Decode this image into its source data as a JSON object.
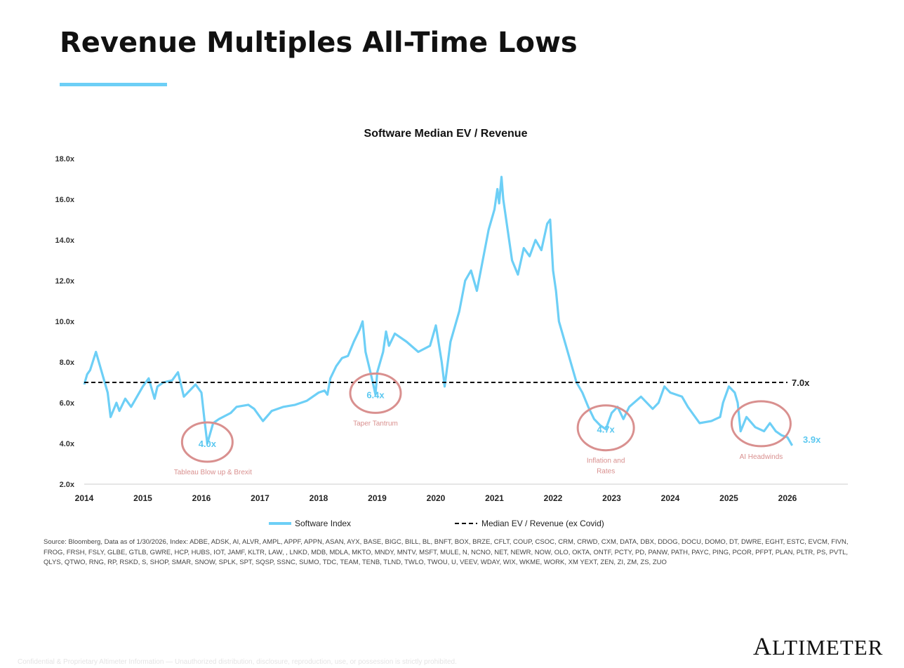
{
  "page": {
    "title": "Revenue Multiples All-Time Lows",
    "source": "Source: Bloomberg, Data as of 1/30/2026, Index: ADBE, ADSK, AI, ALVR, AMPL, APPF, APPN, ASAN, AYX, BASE, BIGC, BILL, BL, BNFT, BOX,  BRZE, CFLT, COUP, CSOC, CRM, CRWD, CXM, DATA, DBX, DDOG, DOCU, DOMO, DT, DWRE, EGHT, ESTC, EVCM, FIVN, FROG, FRSH, FSLY, GLBE, GTLB, GWRE, HCP, HUBS, IOT, JAMF, KLTR, LAW, , LNKD, MDB, MDLA, MKTO, MNDY, MNTV, MSFT, MULE, N, NCNO, NET, NEWR, NOW, OLO, OKTA, ONTF, PCTY, PD, PANW, PATH, PAYC, PING, PCOR, PFPT, PLAN, PLTR, PS, PVTL, QLYS, QTWO, RNG, RP, RSKD, S, SHOP, SMAR, SNOW, SPLK, SPT, SQSP, SSNC, SUMO, TDC, TEAM, TENB, TLND, TWLO, TWOU, U, VEEV, WDAY, WIX, WKME, WORK, XM YEXT, ZEN, ZI, ZM, ZS, ZUO",
    "confidential": "Confidential & Proprietary Altimeter Information — Unauthorized distribution, disclosure, reproduction, use, or possession is strictly prohibited.",
    "logo": "ALTIMETER",
    "accent": "#6dcff6"
  },
  "chart_data": {
    "type": "line",
    "title": "Software Median EV / Revenue",
    "xlabel": "",
    "ylabel": "",
    "xlim": [
      2014,
      2026.8
    ],
    "ylim": [
      2,
      18
    ],
    "x_ticks": [
      "2014",
      "2015",
      "2016",
      "2017",
      "2018",
      "2019",
      "2020",
      "2021",
      "2022",
      "2023",
      "2024",
      "2025",
      "2026"
    ],
    "y_ticks": [
      "2.0x",
      "4.0x",
      "6.0x",
      "8.0x",
      "10.0x",
      "12.0x",
      "14.0x",
      "16.0x",
      "18.0x"
    ],
    "grid": false,
    "legend": "bottom",
    "series": [
      {
        "name": "Software Index",
        "color": "#6dcff6",
        "x": [
          2014.0,
          2014.05,
          2014.1,
          2014.2,
          2014.3,
          2014.4,
          2014.45,
          2014.55,
          2014.6,
          2014.7,
          2014.8,
          2014.9,
          2015.0,
          2015.1,
          2015.2,
          2015.25,
          2015.35,
          2015.5,
          2015.6,
          2015.7,
          2015.8,
          2015.9,
          2016.0,
          2016.05,
          2016.1,
          2016.2,
          2016.3,
          2016.5,
          2016.6,
          2016.8,
          2016.9,
          2017.0,
          2017.05,
          2017.2,
          2017.4,
          2017.6,
          2017.8,
          2018.0,
          2018.1,
          2018.15,
          2018.2,
          2018.3,
          2018.4,
          2018.5,
          2018.6,
          2018.7,
          2018.75,
          2018.8,
          2018.9,
          2018.97,
          2019.0,
          2019.1,
          2019.15,
          2019.2,
          2019.3,
          2019.5,
          2019.7,
          2019.9,
          2020.0,
          2020.1,
          2020.15,
          2020.25,
          2020.4,
          2020.5,
          2020.6,
          2020.7,
          2020.8,
          2020.9,
          2021.0,
          2021.05,
          2021.08,
          2021.12,
          2021.15,
          2021.25,
          2021.3,
          2021.4,
          2021.5,
          2021.6,
          2021.7,
          2021.8,
          2021.9,
          2021.95,
          2022.0,
          2022.05,
          2022.1,
          2022.2,
          2022.3,
          2022.4,
          2022.5,
          2022.6,
          2022.7,
          2022.8,
          2022.9,
          2023.0,
          2023.1,
          2023.2,
          2023.3,
          2023.5,
          2023.7,
          2023.8,
          2023.9,
          2024.0,
          2024.2,
          2024.3,
          2024.5,
          2024.7,
          2024.85,
          2024.9,
          2025.0,
          2025.1,
          2025.15,
          2025.2,
          2025.3,
          2025.45,
          2025.6,
          2025.7,
          2025.8,
          2025.9,
          2026.0,
          2026.08
        ],
        "values": [
          6.9,
          7.4,
          7.6,
          8.5,
          7.5,
          6.5,
          5.3,
          6.0,
          5.6,
          6.2,
          5.8,
          6.3,
          6.8,
          7.2,
          6.2,
          6.8,
          7.0,
          7.1,
          7.5,
          6.3,
          6.6,
          6.9,
          6.5,
          5.2,
          4.0,
          5.0,
          5.2,
          5.5,
          5.8,
          5.9,
          5.7,
          5.3,
          5.1,
          5.6,
          5.8,
          5.9,
          6.1,
          6.5,
          6.6,
          6.4,
          7.2,
          7.8,
          8.2,
          8.3,
          9.0,
          9.6,
          10.0,
          8.5,
          7.3,
          6.4,
          7.5,
          8.5,
          9.5,
          8.8,
          9.4,
          9.0,
          8.5,
          8.8,
          9.8,
          8.0,
          6.8,
          9.0,
          10.5,
          12.0,
          12.5,
          11.5,
          13.0,
          14.5,
          15.5,
          16.5,
          15.8,
          17.1,
          16.0,
          14.0,
          13.0,
          12.3,
          13.6,
          13.2,
          14.0,
          13.5,
          14.8,
          15.0,
          12.5,
          11.5,
          10.0,
          9.0,
          8.0,
          7.0,
          6.5,
          5.8,
          5.2,
          4.9,
          4.7,
          5.5,
          5.8,
          5.2,
          5.8,
          6.3,
          5.7,
          6.0,
          6.8,
          6.5,
          6.3,
          5.8,
          5.0,
          5.1,
          5.3,
          6.0,
          6.8,
          6.5,
          6.0,
          4.6,
          5.3,
          4.8,
          4.6,
          5.0,
          4.6,
          4.4,
          4.3,
          3.9
        ]
      },
      {
        "name": "Median EV / Revenue (ex Covid)",
        "color": "#000000",
        "style": "dashed",
        "x": [
          2014.0,
          2026.0
        ],
        "values": [
          7.0,
          7.0
        ]
      }
    ],
    "value_labels": {
      "median": "7.0x",
      "last": "3.9x"
    },
    "annotations": [
      {
        "value": "4.0x",
        "caption": [
          "Tableau Blow up & Brexit"
        ],
        "x": 2016.1,
        "y": 4.0
      },
      {
        "value": "6.4x",
        "caption": [
          "Taper Tantrum"
        ],
        "x": 2018.97,
        "y": 6.4
      },
      {
        "value": "4.7x",
        "caption": [
          "Inflation and",
          "Rates"
        ],
        "x": 2022.9,
        "y": 4.7
      },
      {
        "value": "",
        "caption": [
          "AI Headwinds"
        ],
        "x": 2025.55,
        "y": 4.9
      }
    ],
    "annotation_colors": {
      "circle": "#d9908f",
      "caption": "#d9908f",
      "value": "#5bc8f0"
    }
  }
}
